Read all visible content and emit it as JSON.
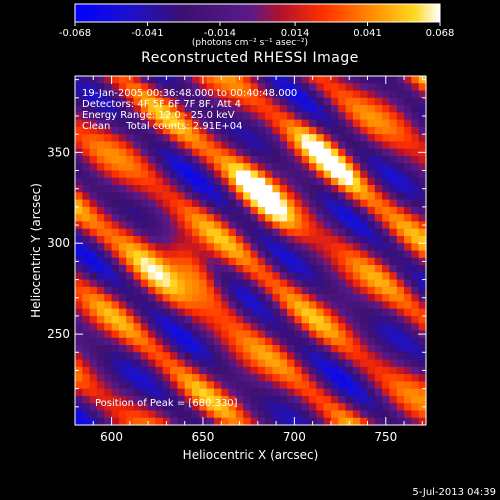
{
  "figure": {
    "title": "Reconstructed RHESSI Image",
    "timestamp": "5-Jul-2013 04:39"
  },
  "colorbar": {
    "ticks": [
      "-0.068",
      "-0.041",
      "-0.014",
      "0.014",
      "0.041",
      "0.068"
    ],
    "tick_values": [
      -0.068,
      -0.041,
      -0.014,
      0.014,
      0.041,
      0.068
    ],
    "unit_label": "(photons cm⁻² s⁻¹ asec⁻²)",
    "colors": [
      "#0000ff",
      "#3a0aa0",
      "#4a1a5a",
      "#7a1a8a",
      "#ff2a00",
      "#ff8800",
      "#ffd000",
      "#ffffff"
    ]
  },
  "annotations": {
    "line1": "19-Jan-2005 00:36:48.000 to 00:40:48.000",
    "line2": "Detectors: 4F 5F 6F 7F 8F, Att 4",
    "line3": "Energy Range: 12.0 - 25.0 keV",
    "line4": "Clean     Total counts: 2.91E+04",
    "peak": "Position of Peak = [680,330]"
  },
  "chart_data": {
    "type": "heatmap",
    "title": "Reconstructed RHESSI Image",
    "xlabel": "Heliocentric X (arcsec)",
    "ylabel": "Heliocentric Y (arcsec)",
    "xlim": [
      580,
      772
    ],
    "ylim": [
      200,
      392
    ],
    "x_ticks": [
      600,
      650,
      700,
      750
    ],
    "y_ticks": [
      250,
      300,
      350
    ],
    "value_range": [
      -0.068,
      0.068
    ],
    "peak_position": [
      680,
      330
    ],
    "peaks": [
      {
        "x": 680,
        "y": 330,
        "value": 0.068
      },
      {
        "x": 648,
        "y": 283,
        "value": 0.062
      },
      {
        "x": 720,
        "y": 345,
        "value": 0.045
      },
      {
        "x": 615,
        "y": 300,
        "value": 0.04
      }
    ]
  }
}
